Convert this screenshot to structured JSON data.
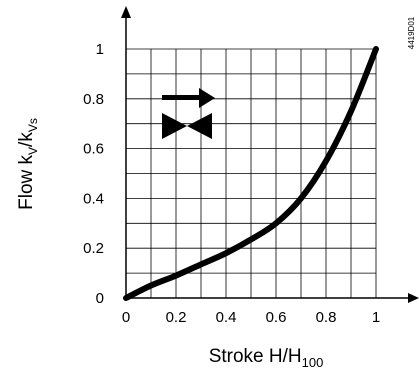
{
  "chart_data": {
    "type": "line",
    "xlabel": {
      "main": "Stroke H/H",
      "sub": "100"
    },
    "ylabel": {
      "pre": "Flow k",
      "sub1": "V",
      "mid": "/k",
      "sub2": "Vs"
    },
    "figure_code": "4419D01",
    "xlim": [
      0,
      1
    ],
    "ylim": [
      0,
      1
    ],
    "grid": true,
    "x_ticks": [
      "0",
      "0.2",
      "0.4",
      "0.6",
      "0.8",
      "1"
    ],
    "y_ticks": [
      "0",
      "0.2",
      "0.4",
      "0.6",
      "0.8",
      "1"
    ],
    "series": [
      {
        "x": [
          0,
          0.1,
          0.2,
          0.3,
          0.4,
          0.5,
          0.6,
          0.7,
          0.8,
          0.9,
          1.0
        ],
        "y": [
          0.0,
          0.05,
          0.09,
          0.135,
          0.18,
          0.235,
          0.3,
          0.4,
          0.55,
          0.75,
          1.0
        ]
      }
    ],
    "symbol": "flow-direction-valve-icon"
  }
}
